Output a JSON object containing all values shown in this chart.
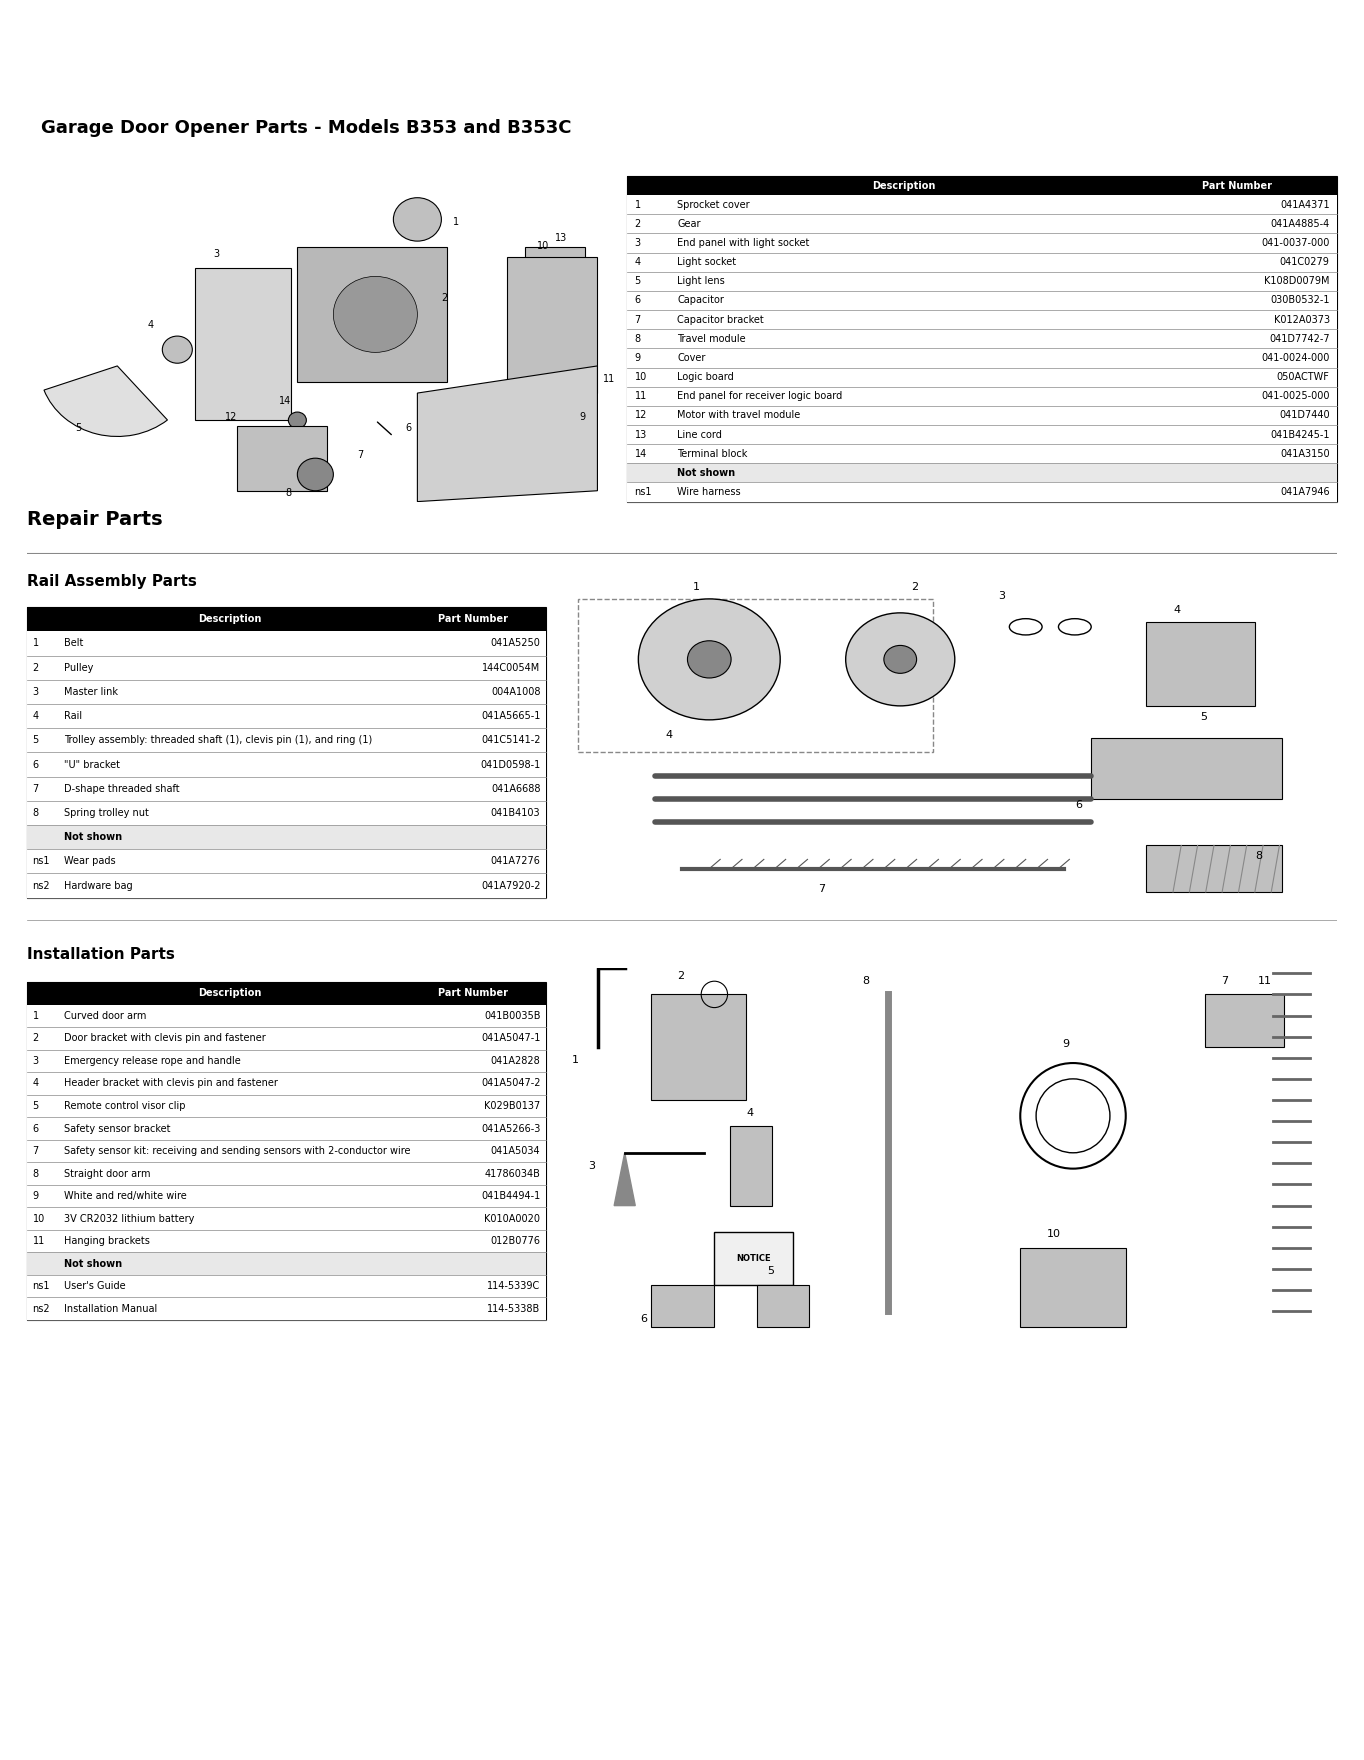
{
  "page_title": "Garage Door Opener Parts - Models B353 and B353C",
  "bg_color": "#ffffff",
  "section1_table": {
    "header": [
      "",
      "Description",
      "Part Number"
    ],
    "rows": [
      [
        "1",
        "Sprocket cover",
        "041A4371"
      ],
      [
        "2",
        "Gear",
        "041A4885-4"
      ],
      [
        "3",
        "End panel with light socket",
        "041-0037-000"
      ],
      [
        "4",
        "Light socket",
        "041C0279"
      ],
      [
        "5",
        "Light lens",
        "K108D0079M"
      ],
      [
        "6",
        "Capacitor",
        "030B0532-1"
      ],
      [
        "7",
        "Capacitor bracket",
        "K012A0373"
      ],
      [
        "8",
        "Travel module",
        "041D7742-7"
      ],
      [
        "9",
        "Cover",
        "041-0024-000"
      ],
      [
        "10",
        "Logic board",
        "050ACTWF"
      ],
      [
        "11",
        "End panel for receiver logic board",
        "041-0025-000"
      ],
      [
        "12",
        "Motor with travel module",
        "041D7440"
      ],
      [
        "13",
        "Line cord",
        "041B4245-1"
      ],
      [
        "14",
        "Terminal block",
        "041A3150"
      ],
      [
        "not_shown",
        "Not shown",
        ""
      ],
      [
        "ns1",
        "Wire harness",
        "041A7946"
      ]
    ]
  },
  "repair_title": "Repair Parts",
  "rail_subtitle": "Rail Assembly Parts",
  "section2_table": {
    "header": [
      "",
      "Description",
      "Part Number"
    ],
    "rows": [
      [
        "1",
        "Belt",
        "041A5250"
      ],
      [
        "2",
        "Pulley",
        "144C0054M"
      ],
      [
        "3",
        "Master link",
        "004A1008"
      ],
      [
        "4",
        "Rail",
        "041A5665-1"
      ],
      [
        "5",
        "Trolley assembly: threaded shaft (1), clevis pin (1), and ring (1)",
        "041C5141-2"
      ],
      [
        "6",
        "\"U\" bracket",
        "041D0598-1"
      ],
      [
        "7",
        "D-shape threaded shaft",
        "041A6688"
      ],
      [
        "8",
        "Spring trolley nut",
        "041B4103"
      ],
      [
        "not_shown",
        "Not shown",
        ""
      ],
      [
        "ns1",
        "Wear pads",
        "041A7276"
      ],
      [
        "ns2",
        "Hardware bag",
        "041A7920-2"
      ]
    ]
  },
  "install_title": "Installation Parts",
  "section3_table": {
    "header": [
      "",
      "Description",
      "Part Number"
    ],
    "rows": [
      [
        "1",
        "Curved door arm",
        "041B0035B"
      ],
      [
        "2",
        "Door bracket with clevis pin and fastener",
        "041A5047-1"
      ],
      [
        "3",
        "Emergency release rope and handle",
        "041A2828"
      ],
      [
        "4",
        "Header bracket with clevis pin and fastener",
        "041A5047-2"
      ],
      [
        "5",
        "Remote control visor clip",
        "K029B0137"
      ],
      [
        "6",
        "Safety sensor bracket",
        "041A5266-3"
      ],
      [
        "7",
        "Safety sensor kit: receiving and sending sensors with 2-conductor wire",
        "041A5034"
      ],
      [
        "8",
        "Straight door arm",
        "41786034B"
      ],
      [
        "9",
        "White and red/white wire",
        "041B4494-1"
      ],
      [
        "10",
        "3V CR2032 lithium battery",
        "K010A0020"
      ],
      [
        "11",
        "Hanging brackets",
        "012B0776"
      ],
      [
        "not_shown",
        "Not shown",
        ""
      ],
      [
        "ns1",
        "User's Guide",
        "114-5339C"
      ],
      [
        "ns2",
        "Installation Manual",
        "114-5338B"
      ]
    ]
  },
  "header_bg": "#000000",
  "header_fg": "#ffffff",
  "row_bg_even": "#ffffff",
  "row_bg_odd": "#f5f5f5",
  "divider_color": "#cccccc",
  "bold_section_color": "#000000",
  "table_border": "#000000"
}
